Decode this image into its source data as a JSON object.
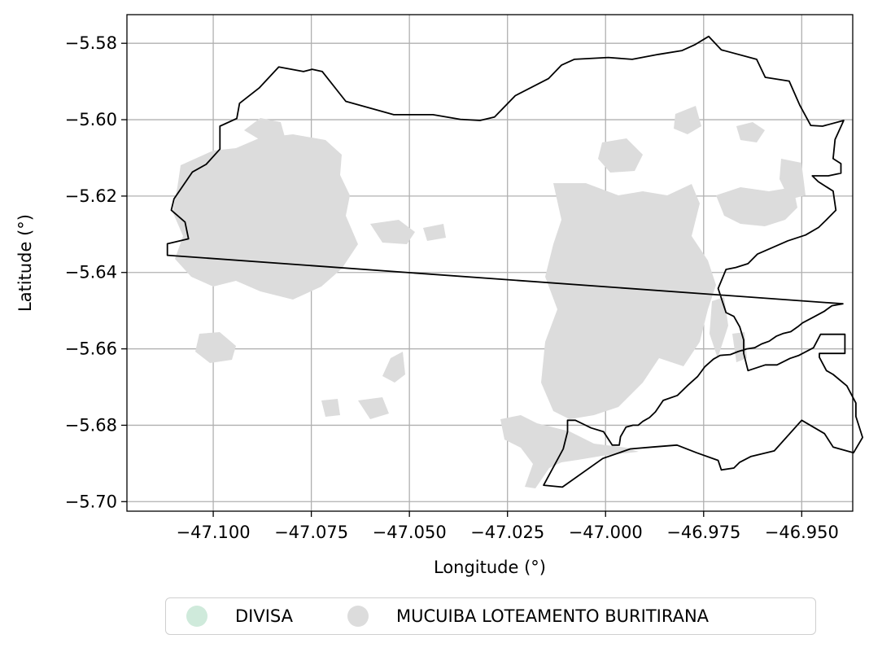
{
  "axes": {
    "xlabel": "Longitude (°)",
    "ylabel": "Latitude (°)",
    "xlim": [
      -47.122,
      -46.937
    ],
    "ylim": [
      -5.7025,
      -5.5725
    ],
    "x_ticks": [
      -47.1,
      -47.075,
      -47.05,
      -47.025,
      -47.0,
      -46.975,
      -46.95
    ],
    "x_tick_labels": [
      "−47.100",
      "−47.075",
      "−47.050",
      "−47.025",
      "−47.000",
      "−46.975",
      "−46.950"
    ],
    "y_ticks": [
      -5.58,
      -5.6,
      -5.62,
      -5.64,
      -5.66,
      -5.68,
      -5.7
    ],
    "y_tick_labels": [
      "−5.58",
      "−5.60",
      "−5.62",
      "−5.64",
      "−5.66",
      "−5.68",
      "−5.70"
    ],
    "grid": true
  },
  "legend": {
    "placement": "bottom-center",
    "items": [
      {
        "label": "DIVISA",
        "color": "#cfeadb"
      },
      {
        "label": "MUCUIBA LOTEAMENTO BURITIRANA",
        "color": "#dcdcdc"
      }
    ]
  },
  "layers": {
    "divisa": {
      "edge_color": "#000000",
      "boundary_lonlat": [
        [
          -47.1117,
          -5.6355
        ],
        [
          -47.1117,
          -5.6325
        ],
        [
          -47.1063,
          -5.6312
        ],
        [
          -47.1072,
          -5.6268
        ],
        [
          -47.1107,
          -5.6237
        ],
        [
          -47.11,
          -5.6207
        ],
        [
          -47.1053,
          -5.6137
        ],
        [
          -47.1018,
          -5.6117
        ],
        [
          -47.0983,
          -5.6077
        ],
        [
          -47.0983,
          -5.6017
        ],
        [
          -47.094,
          -5.5997
        ],
        [
          -47.0933,
          -5.5957
        ],
        [
          -47.0883,
          -5.5917
        ],
        [
          -47.0833,
          -5.5862
        ],
        [
          -47.077,
          -5.5874
        ],
        [
          -47.0748,
          -5.5868
        ],
        [
          -47.0722,
          -5.5874
        ],
        [
          -47.0662,
          -5.5952
        ],
        [
          -47.054,
          -5.5987
        ],
        [
          -47.044,
          -5.5987
        ],
        [
          -47.037,
          -5.5999
        ],
        [
          -47.032,
          -5.6002
        ],
        [
          -47.0283,
          -5.5993
        ],
        [
          -47.023,
          -5.5937
        ],
        [
          -47.0145,
          -5.5892
        ],
        [
          -47.0112,
          -5.5857
        ],
        [
          -47.008,
          -5.5842
        ],
        [
          -46.9993,
          -5.5837
        ],
        [
          -46.9932,
          -5.5842
        ],
        [
          -46.9865,
          -5.5829
        ],
        [
          -46.9805,
          -5.5819
        ],
        [
          -46.9773,
          -5.5804
        ],
        [
          -46.9737,
          -5.5782
        ],
        [
          -46.9705,
          -5.5817
        ],
        [
          -46.9615,
          -5.5842
        ],
        [
          -46.9593,
          -5.5889
        ],
        [
          -46.9532,
          -5.5899
        ],
        [
          -46.9505,
          -5.5962
        ],
        [
          -46.9477,
          -5.6015
        ],
        [
          -46.9447,
          -5.6017
        ],
        [
          -46.9393,
          -5.6002
        ],
        [
          -46.9415,
          -5.6052
        ],
        [
          -46.942,
          -5.6102
        ],
        [
          -46.94,
          -5.6115
        ],
        [
          -46.94,
          -5.614
        ],
        [
          -46.9432,
          -5.6147
        ],
        [
          -46.9473,
          -5.6147
        ],
        [
          -46.9458,
          -5.6162
        ],
        [
          -46.942,
          -5.6187
        ],
        [
          -46.9413,
          -5.6237
        ],
        [
          -46.9437,
          -5.6262
        ],
        [
          -46.9457,
          -5.6282
        ],
        [
          -46.949,
          -5.6302
        ],
        [
          -46.9535,
          -5.6317
        ],
        [
          -46.9613,
          -5.6352
        ],
        [
          -46.9637,
          -5.6377
        ],
        [
          -46.9668,
          -5.6387
        ],
        [
          -46.9693,
          -5.6392
        ],
        [
          -46.9713,
          -5.6442
        ],
        [
          -46.9693,
          -5.6505
        ],
        [
          -46.9673,
          -5.6515
        ],
        [
          -46.9658,
          -5.6542
        ],
        [
          -46.9648,
          -5.6577
        ],
        [
          -46.9648,
          -5.6612
        ],
        [
          -46.9637,
          -5.6657
        ],
        [
          -46.9593,
          -5.6642
        ],
        [
          -46.9563,
          -5.6642
        ],
        [
          -46.953,
          -5.6625
        ],
        [
          -46.9507,
          -5.6617
        ],
        [
          -46.947,
          -5.6597
        ],
        [
          -46.9452,
          -5.6562
        ],
        [
          -46.939,
          -5.6562
        ],
        [
          -46.939,
          -5.6612
        ],
        [
          -46.9455,
          -5.6612
        ],
        [
          -46.9455,
          -5.6622
        ],
        [
          -46.9437,
          -5.6657
        ],
        [
          -46.942,
          -5.6667
        ],
        [
          -46.9385,
          -5.6697
        ],
        [
          -46.9362,
          -5.6742
        ],
        [
          -46.9362,
          -5.6777
        ],
        [
          -46.9345,
          -5.6832
        ],
        [
          -46.9368,
          -5.6872
        ],
        [
          -46.942,
          -5.6857
        ],
        [
          -46.9442,
          -5.6822
        ],
        [
          -46.95,
          -5.6787
        ],
        [
          -46.957,
          -5.6867
        ],
        [
          -46.963,
          -5.6882
        ],
        [
          -46.9658,
          -5.6897
        ],
        [
          -46.9673,
          -5.6912
        ],
        [
          -46.9705,
          -5.6917
        ],
        [
          -46.9713,
          -5.6892
        ],
        [
          -46.9768,
          -5.6872
        ],
        [
          -46.9818,
          -5.6852
        ],
        [
          -46.988,
          -5.6857
        ],
        [
          -46.9937,
          -5.6862
        ],
        [
          -47.0007,
          -5.6887
        ],
        [
          -47.011,
          -5.6962
        ],
        [
          -47.0158,
          -5.6957
        ],
        [
          -47.0108,
          -5.6862
        ],
        [
          -47.0097,
          -5.6817
        ],
        [
          -47.0097,
          -5.6787
        ],
        [
          -47.0077,
          -5.6787
        ],
        [
          -47.0057,
          -5.6797
        ],
        [
          -47.0037,
          -5.6807
        ],
        [
          -47.0005,
          -5.6817
        ],
        [
          -46.9983,
          -5.6852
        ],
        [
          -46.9965,
          -5.6852
        ],
        [
          -46.9962,
          -5.683
        ],
        [
          -46.9948,
          -5.6805
        ],
        [
          -46.993,
          -5.68
        ],
        [
          -46.9917,
          -5.68
        ],
        [
          -46.9905,
          -5.679
        ],
        [
          -46.9888,
          -5.678
        ],
        [
          -46.9873,
          -5.6765
        ],
        [
          -46.9853,
          -5.6735
        ],
        [
          -46.9817,
          -5.6722
        ],
        [
          -46.979,
          -5.6695
        ],
        [
          -46.9765,
          -5.6672
        ],
        [
          -46.9747,
          -5.6647
        ],
        [
          -46.9725,
          -5.6627
        ],
        [
          -46.9708,
          -5.6617
        ],
        [
          -46.9682,
          -5.6615
        ],
        [
          -46.9662,
          -5.6607
        ],
        [
          -46.964,
          -5.66
        ],
        [
          -46.962,
          -5.6597
        ],
        [
          -46.9602,
          -5.6587
        ],
        [
          -46.9583,
          -5.658
        ],
        [
          -46.9565,
          -5.6567
        ],
        [
          -46.9548,
          -5.656
        ],
        [
          -46.9528,
          -5.6555
        ],
        [
          -46.951,
          -5.6542
        ],
        [
          -46.9498,
          -5.6532
        ],
        [
          -46.947,
          -5.6517
        ],
        [
          -46.9443,
          -5.6502
        ],
        [
          -46.9423,
          -5.6487
        ],
        [
          -46.9395,
          -5.6482
        ]
      ]
    },
    "mucuiba_loteamento_buritirana": {
      "fill_color": "#dcdcdc"
    }
  }
}
